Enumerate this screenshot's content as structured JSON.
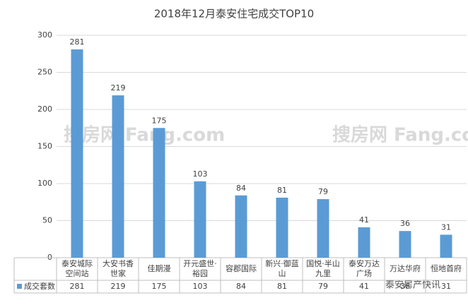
{
  "chart_data": {
    "type": "bar",
    "title": "2018年12月泰安住宅成交TOP10",
    "categories": [
      "泰安城际空间站",
      "大安书香世家",
      "佳期漫",
      "开元盛世·裕园",
      "容郡国际",
      "新兴·御蓝山",
      "国悦·半山九里",
      "泰安万达广场",
      "万达华府",
      "恒地首府"
    ],
    "series": [
      {
        "name": "成交套数",
        "color": "#5b9bd5",
        "values": [
          281,
          219,
          175,
          103,
          84,
          81,
          79,
          41,
          36,
          31
        ]
      }
    ],
    "ylim": [
      0,
      300
    ],
    "yticks": [
      0,
      50,
      100,
      150,
      200,
      250,
      300
    ],
    "grid": true,
    "watermarks": [
      "搜房网 Fang.com",
      "搜房网 Fang.com",
      "泰安房产快讯"
    ]
  }
}
